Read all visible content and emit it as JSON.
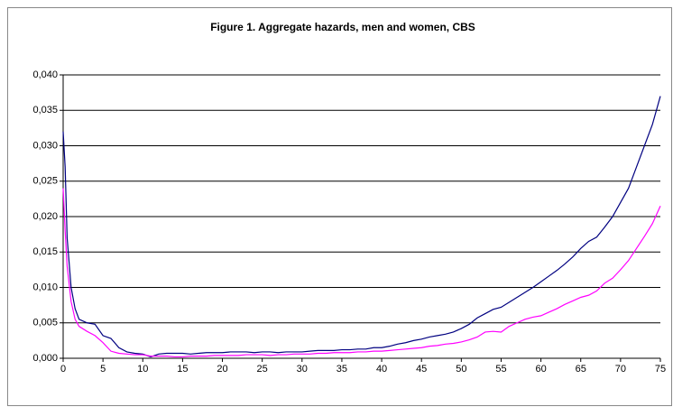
{
  "chart_data": {
    "type": "line",
    "title": "Figure 1. Aggregate hazards, men and women, CBS",
    "x": [
      0,
      0.25,
      0.5,
      1,
      1.5,
      2,
      3,
      4,
      5,
      6,
      7,
      8,
      9,
      10,
      11,
      12,
      13,
      14,
      15,
      16,
      17,
      18,
      19,
      20,
      21,
      22,
      23,
      24,
      25,
      26,
      27,
      28,
      29,
      30,
      31,
      32,
      33,
      34,
      35,
      36,
      37,
      38,
      39,
      40,
      41,
      42,
      43,
      44,
      45,
      46,
      47,
      48,
      49,
      50,
      51,
      52,
      53,
      54,
      55,
      56,
      57,
      58,
      59,
      60,
      61,
      62,
      63,
      64,
      65,
      66,
      67,
      68,
      69,
      70,
      71,
      72,
      73,
      74,
      75
    ],
    "series": [
      {
        "color": "#000080",
        "values": [
          0.032,
          0.027,
          0.017,
          0.01,
          0.007,
          0.0055,
          0.005,
          0.0048,
          0.0032,
          0.0028,
          0.0015,
          0.0009,
          0.0007,
          0.0006,
          0.0002,
          0.0006,
          0.0007,
          0.0007,
          0.0007,
          0.0006,
          0.0007,
          0.0008,
          0.0008,
          0.0008,
          0.0009,
          0.0009,
          0.0009,
          0.0008,
          0.0009,
          0.0009,
          0.0008,
          0.0009,
          0.0009,
          0.0009,
          0.001,
          0.0011,
          0.0011,
          0.0011,
          0.0012,
          0.0012,
          0.0013,
          0.0013,
          0.0015,
          0.0015,
          0.0017,
          0.002,
          0.0022,
          0.0025,
          0.0027,
          0.003,
          0.0032,
          0.0034,
          0.0037,
          0.0042,
          0.0048,
          0.0057,
          0.0063,
          0.0069,
          0.0072,
          0.0079,
          0.0086,
          0.0093,
          0.01,
          0.0108,
          0.0116,
          0.0124,
          0.0133,
          0.0143,
          0.0155,
          0.0165,
          0.0171,
          0.0185,
          0.02,
          0.022,
          0.024,
          0.027,
          0.03,
          0.033,
          0.037
        ]
      },
      {
        "color": "#ff00ff",
        "values": [
          0.024,
          0.018,
          0.013,
          0.008,
          0.0055,
          0.0045,
          0.0038,
          0.0032,
          0.0022,
          0.001,
          0.0007,
          0.0006,
          0.0005,
          0.0005,
          0.0003,
          0.0003,
          0.0003,
          0.0002,
          0.0002,
          0.0003,
          0.0003,
          0.0003,
          0.0004,
          0.0004,
          0.0004,
          0.0004,
          0.0005,
          0.0005,
          0.0005,
          0.0004,
          0.0005,
          0.0005,
          0.0006,
          0.0006,
          0.0006,
          0.0007,
          0.0007,
          0.0008,
          0.0008,
          0.0008,
          0.0009,
          0.0009,
          0.001,
          0.001,
          0.0011,
          0.0012,
          0.0013,
          0.0014,
          0.0015,
          0.0017,
          0.0018,
          0.002,
          0.0021,
          0.0023,
          0.0026,
          0.003,
          0.0037,
          0.0038,
          0.0037,
          0.0045,
          0.005,
          0.0055,
          0.0058,
          0.006,
          0.0065,
          0.007,
          0.0076,
          0.0081,
          0.0086,
          0.0089,
          0.0095,
          0.0106,
          0.0113,
          0.0125,
          0.0138,
          0.0155,
          0.0172,
          0.019,
          0.0215
        ]
      }
    ],
    "xlim": [
      0,
      75
    ],
    "xticks": [
      0,
      5,
      10,
      15,
      20,
      25,
      30,
      35,
      40,
      45,
      50,
      55,
      60,
      65,
      70,
      75
    ],
    "ylim": [
      0,
      0.04
    ],
    "yticks": [
      {
        "value": 0,
        "label": "0,000"
      },
      {
        "value": 0.005,
        "label": "0,005"
      },
      {
        "value": 0.01,
        "label": "0,010"
      },
      {
        "value": 0.015,
        "label": "0,015"
      },
      {
        "value": 0.02,
        "label": "0,020"
      },
      {
        "value": 0.025,
        "label": "0,025"
      },
      {
        "value": 0.03,
        "label": "0,030"
      },
      {
        "value": 0.035,
        "label": "0,035"
      },
      {
        "value": 0.04,
        "label": "0,040"
      }
    ],
    "grid": true
  }
}
